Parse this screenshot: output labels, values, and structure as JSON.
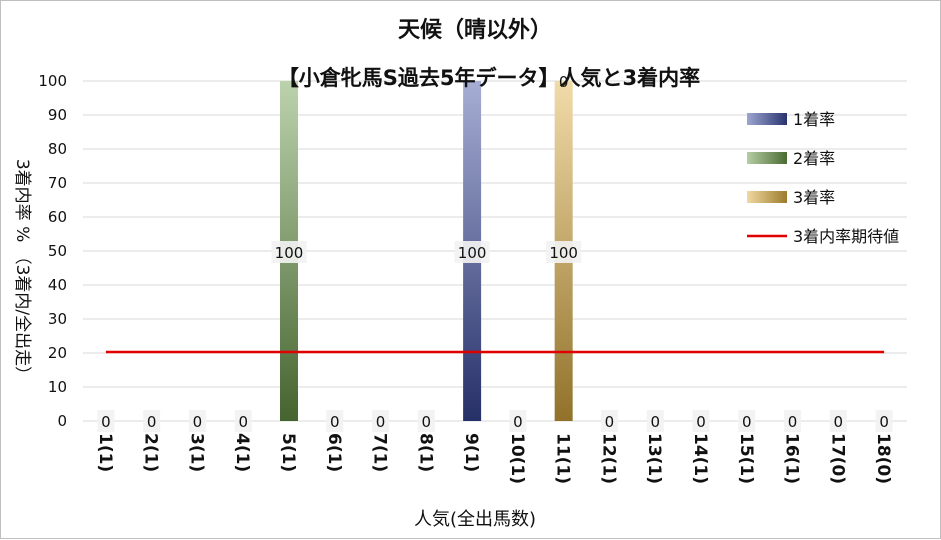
{
  "chart_data": {
    "type": "bar",
    "title": "天候（晴以外）",
    "subtitle": "【小倉牝馬S過去5年データ】人気と3着内率",
    "xlabel": "人気(全出馬数)",
    "ylabel": "3着内率 %  （3着内/全出走）",
    "ylim": [
      0,
      100
    ],
    "yticks": [
      0,
      10,
      20,
      30,
      40,
      50,
      60,
      70,
      80,
      90,
      100
    ],
    "grid": true,
    "legend_position": "right",
    "categories": [
      "1(1)",
      "2(1)",
      "3(1)",
      "4(1)",
      "5(1)",
      "6(1)",
      "7(1)",
      "8(1)",
      "9(1)",
      "10(1)",
      "11(1)",
      "12(1)",
      "13(1)",
      "14(1)",
      "15(1)",
      "16(1)",
      "17(0)",
      "18(0)"
    ],
    "series": [
      {
        "name": "1着率",
        "color": "#3a4aa0",
        "values": [
          0,
          0,
          0,
          0,
          0,
          0,
          0,
          0,
          100,
          0,
          0,
          0,
          0,
          0,
          0,
          0,
          0,
          0
        ]
      },
      {
        "name": "2着率",
        "color": "#6a9a48",
        "values": [
          0,
          0,
          0,
          0,
          100,
          0,
          0,
          0,
          0,
          0,
          0,
          0,
          0,
          0,
          0,
          0,
          0,
          0
        ]
      },
      {
        "name": "3着率",
        "color": "#e0b040",
        "values": [
          0,
          0,
          0,
          0,
          0,
          0,
          0,
          0,
          0,
          0,
          100,
          0,
          0,
          0,
          0,
          0,
          0,
          0
        ]
      }
    ],
    "cumulative_labels": [
      "0",
      "0",
      "0",
      "0",
      "100",
      "0",
      "0",
      "0",
      "100",
      "0",
      "100",
      "0",
      "0",
      "0",
      "0",
      "0",
      "0",
      "0"
    ],
    "expected_line": {
      "name": "3着内率期待値",
      "value": 20.3,
      "color": "#e00000"
    }
  }
}
